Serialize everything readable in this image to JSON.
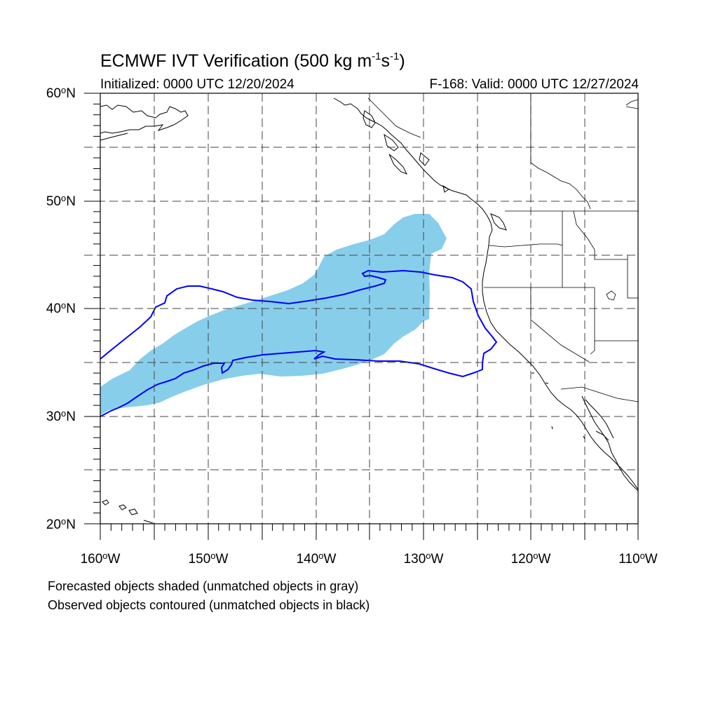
{
  "title": {
    "main": "ECMWF IVT Verification (500 kg m",
    "sup1": "-1",
    "mid": "s",
    "sup2": "-1",
    "end": ")"
  },
  "subtitle": {
    "initialized": "Initialized: 0000 UTC 12/20/2024",
    "valid": "F-168: Valid: 0000 UTC 12/27/2024"
  },
  "axes": {
    "lat_labels": [
      {
        "value": "60",
        "hemi": "N"
      },
      {
        "value": "50",
        "hemi": "N"
      },
      {
        "value": "40",
        "hemi": "N"
      },
      {
        "value": "30",
        "hemi": "N"
      },
      {
        "value": "20",
        "hemi": "N"
      }
    ],
    "lon_labels": [
      {
        "value": "160",
        "hemi": "W"
      },
      {
        "value": "150",
        "hemi": "W"
      },
      {
        "value": "140",
        "hemi": "W"
      },
      {
        "value": "130",
        "hemi": "W"
      },
      {
        "value": "120",
        "hemi": "W"
      },
      {
        "value": "110",
        "hemi": "W"
      }
    ],
    "lat_range": [
      20,
      60
    ],
    "lon_range": [
      -160,
      -110
    ]
  },
  "footnotes": {
    "line1": "Forecasted objects shaded (unmatched objects in gray)",
    "line2": "Observed objects contoured (unmatched objects in black)"
  },
  "colors": {
    "forecast_fill": "#87ceeb",
    "observed_contour": "#0000ff",
    "grid": "#444444",
    "coastline": "#000000"
  }
}
